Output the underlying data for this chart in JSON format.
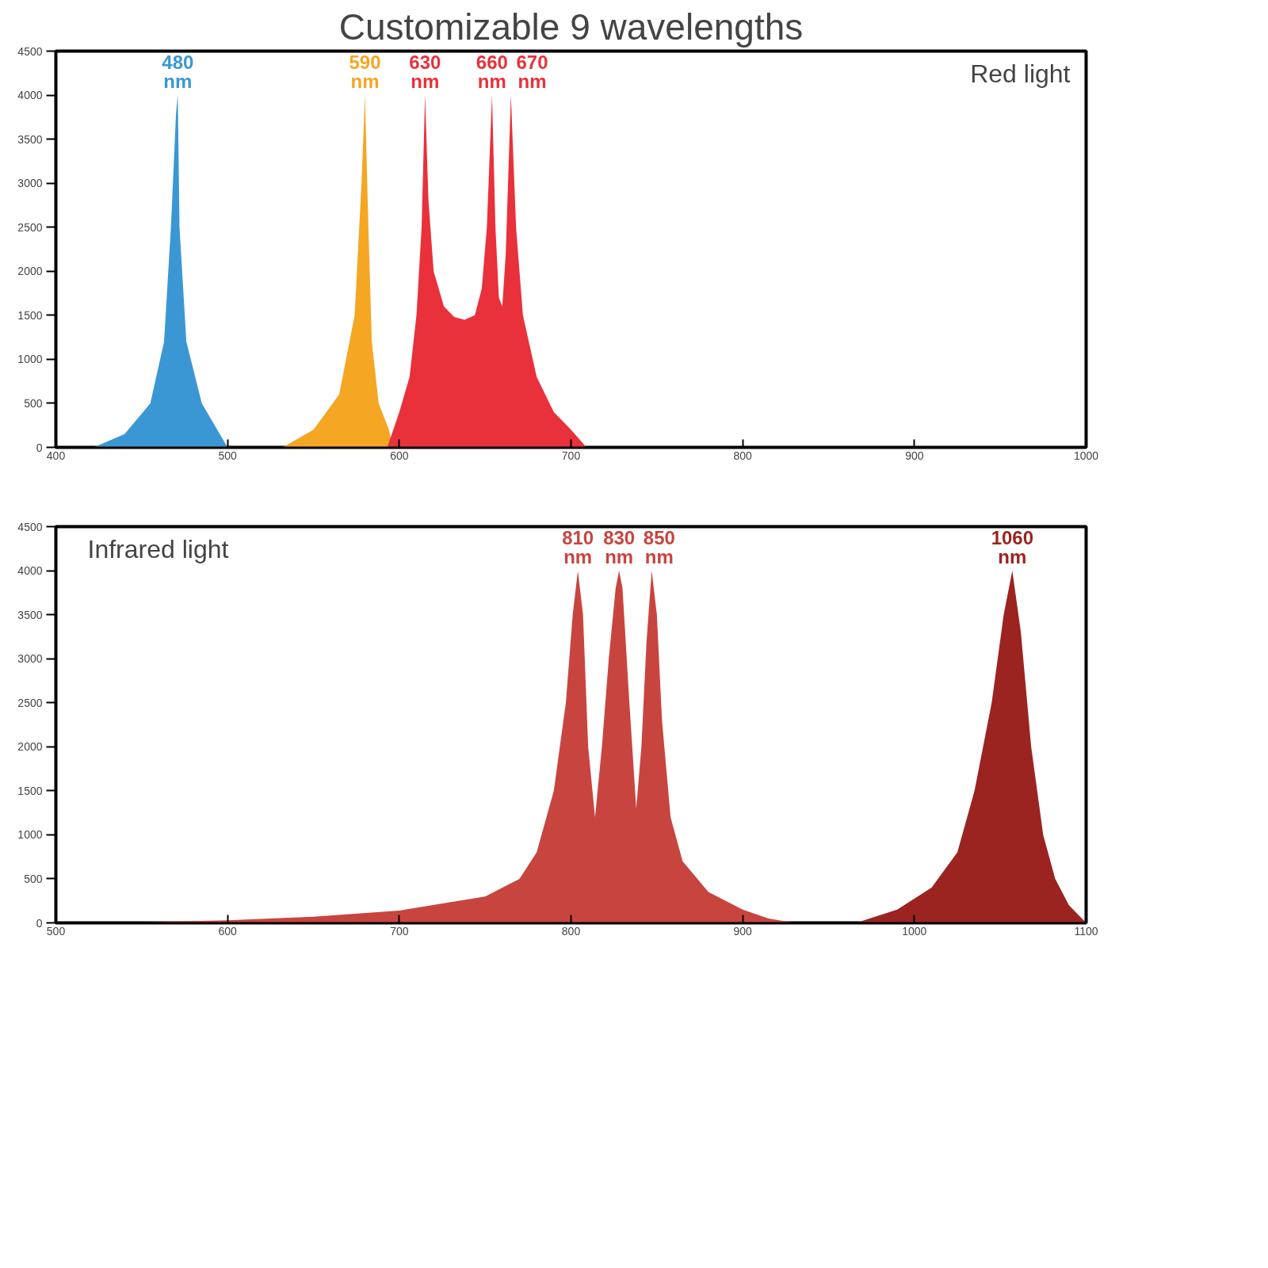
{
  "chart_data": [
    {
      "type": "area",
      "title": "Customizable 9 wavelengths",
      "subtitle": "Red light",
      "xlim": [
        400,
        1000
      ],
      "xticks": [
        400,
        500,
        600,
        700,
        800,
        900,
        1000
      ],
      "ylim": [
        0,
        4500
      ],
      "yticks": [
        0,
        500,
        1000,
        1500,
        2000,
        2500,
        3000,
        3500,
        4000,
        4500
      ],
      "grid": false,
      "series": [
        {
          "color": "#3b97d3",
          "x": [
            422,
            440,
            455,
            463,
            467,
            470,
            471,
            472,
            476,
            485,
            500
          ],
          "values": [
            0,
            150,
            500,
            1200,
            2500,
            3800,
            4000,
            2500,
            1200,
            500,
            0
          ]
        },
        {
          "color": "#f5a623",
          "x": [
            532,
            550,
            565,
            574,
            578,
            580,
            582,
            584,
            588,
            594,
            596
          ],
          "values": [
            0,
            200,
            600,
            1500,
            3000,
            4000,
            2500,
            1200,
            500,
            200,
            0
          ]
        },
        {
          "color": "#e8313a",
          "x": [
            593,
            600,
            606,
            610,
            613,
            615,
            617,
            620,
            626,
            632,
            638,
            644,
            648,
            651,
            654,
            656,
            658,
            660,
            662,
            665,
            668,
            672,
            680,
            690,
            700,
            709
          ],
          "values": [
            0,
            400,
            800,
            1500,
            2500,
            4000,
            2800,
            2000,
            1600,
            1480,
            1450,
            1500,
            1800,
            2500,
            4000,
            2500,
            1700,
            1600,
            2200,
            4000,
            2500,
            1500,
            800,
            400,
            200,
            0
          ]
        }
      ],
      "annotations": [
        {
          "text": "480 nm",
          "x": 471,
          "y": 4000
        },
        {
          "text": "590 nm",
          "x": 580,
          "y": 4000
        },
        {
          "text": "630 nm",
          "x": 615,
          "y": 4000
        },
        {
          "text": "660 nm",
          "x": 654,
          "y": 4000
        },
        {
          "text": "670 nm",
          "x": 665,
          "y": 4000
        }
      ]
    },
    {
      "type": "area",
      "subtitle": "Infrared light",
      "xlim": [
        500,
        1100
      ],
      "xticks": [
        500,
        600,
        700,
        800,
        900,
        1000,
        1100
      ],
      "ylim": [
        0,
        4500
      ],
      "yticks": [
        0,
        500,
        1000,
        1500,
        2000,
        2500,
        3000,
        3500,
        4000,
        4500
      ],
      "grid": false,
      "series": [
        {
          "color": "#c8453f",
          "x": [
            541,
            600,
            650,
            700,
            750,
            770,
            780,
            790,
            797,
            801,
            804,
            807,
            810,
            814,
            818,
            822,
            826,
            828,
            830,
            834,
            838,
            841,
            844,
            847,
            850,
            853,
            858,
            865,
            880,
            900,
            915,
            930
          ],
          "values": [
            0,
            30,
            70,
            140,
            300,
            500,
            800,
            1500,
            2500,
            3500,
            4000,
            3500,
            2000,
            1200,
            2000,
            3000,
            3800,
            4000,
            3800,
            2500,
            1300,
            2000,
            3200,
            4000,
            3500,
            2300,
            1200,
            700,
            350,
            150,
            50,
            0
          ]
        },
        {
          "color": "#9b2420",
          "x": [
            966,
            990,
            1010,
            1025,
            1035,
            1045,
            1052,
            1057,
            1062,
            1068,
            1075,
            1082,
            1090,
            1100
          ],
          "values": [
            0,
            150,
            400,
            800,
            1500,
            2500,
            3500,
            4000,
            3300,
            2000,
            1000,
            500,
            200,
            0
          ]
        }
      ],
      "annotations": [
        {
          "text": "810 nm",
          "x": 804,
          "y": 4000
        },
        {
          "text": "830 nm",
          "x": 828,
          "y": 4000
        },
        {
          "text": "850 nm",
          "x": 847,
          "y": 4000
        },
        {
          "text": "1060 nm",
          "x": 1057,
          "y": 4000
        }
      ]
    }
  ]
}
